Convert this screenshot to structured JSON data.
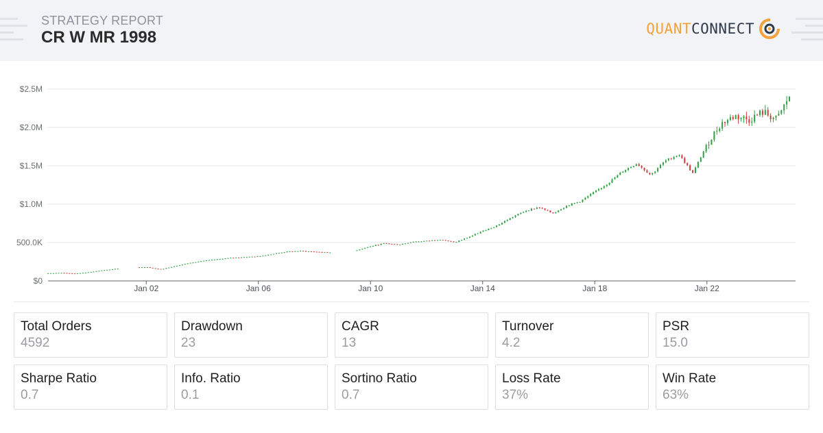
{
  "header": {
    "eyebrow": "STRATEGY REPORT",
    "title": "CR W MR 1998",
    "brand_part1": "QUANT",
    "brand_part2": "CONNECT",
    "logo_icon": "quantconnect-logo-icon",
    "accent_color": "#f5a23a"
  },
  "chart_data": {
    "type": "candlestick",
    "title": "",
    "xlabel": "",
    "ylabel": "",
    "y_ticks": [
      "$0",
      "500.0K",
      "$1.0M",
      "$1.5M",
      "$2.0M",
      "$2.5M"
    ],
    "x_ticks": [
      "Jan 02",
      "Jan 06",
      "Jan 10",
      "Jan 14",
      "Jan 18",
      "Jan 22"
    ],
    "ylim": [
      0,
      2500000
    ],
    "xlim": [
      "1998-07-01",
      "2025-03-01"
    ],
    "grid": true,
    "up_color": "#2ea043",
    "down_color": "#d13a3a",
    "series": [
      {
        "x": [
          "1998-07",
          "1999-01",
          "1999-07",
          "2000-01",
          "2000-07",
          "2001-01",
          "2001-07",
          "2002-01",
          "2002-07",
          "2003-01",
          "2003-07",
          "2004-01",
          "2004-07",
          "2005-01",
          "2005-07",
          "2006-01",
          "2006-07",
          "2007-01",
          "2007-07",
          "2008-01",
          "2008-07",
          "2009-07",
          "2010-01",
          "2010-07",
          "2011-01",
          "2011-07",
          "2012-01",
          "2012-07",
          "2013-01",
          "2013-07",
          "2014-01",
          "2014-07",
          "2015-01",
          "2015-07",
          "2016-01",
          "2016-07",
          "2017-01",
          "2017-07",
          "2018-01",
          "2018-07",
          "2019-01",
          "2019-07",
          "2020-01",
          "2020-07",
          "2021-01",
          "2021-07",
          "2022-01",
          "2022-07",
          "2023-01",
          "2023-07",
          "2024-01",
          "2024-07",
          "2025-01"
        ],
        "y": [
          100000,
          105000,
          95000,
          115000,
          140000,
          160000,
          175000,
          180000,
          150000,
          190000,
          230000,
          260000,
          280000,
          300000,
          310000,
          320000,
          350000,
          380000,
          390000,
          380000,
          370000,
          400000,
          450000,
          490000,
          470000,
          510000,
          520000,
          540000,
          500000,
          570000,
          650000,
          720000,
          820000,
          910000,
          960000,
          880000,
          980000,
          1040000,
          1160000,
          1280000,
          1430000,
          1530000,
          1380000,
          1560000,
          1650000,
          1400000,
          1780000,
          2050000,
          2150000,
          2100000,
          2200000,
          2100000,
          2450000
        ]
      }
    ]
  },
  "stats": [
    {
      "label": "Total Orders",
      "value": "4592"
    },
    {
      "label": "Drawdown",
      "value": "23"
    },
    {
      "label": "CAGR",
      "value": "13"
    },
    {
      "label": "Turnover",
      "value": "4.2"
    },
    {
      "label": "PSR",
      "value": "15.0"
    },
    {
      "label": "Sharpe Ratio",
      "value": "0.7"
    },
    {
      "label": "Info. Ratio",
      "value": "0.1"
    },
    {
      "label": "Sortino Ratio",
      "value": "0.7"
    },
    {
      "label": "Loss Rate",
      "value": "37%"
    },
    {
      "label": "Win Rate",
      "value": "63%"
    }
  ]
}
